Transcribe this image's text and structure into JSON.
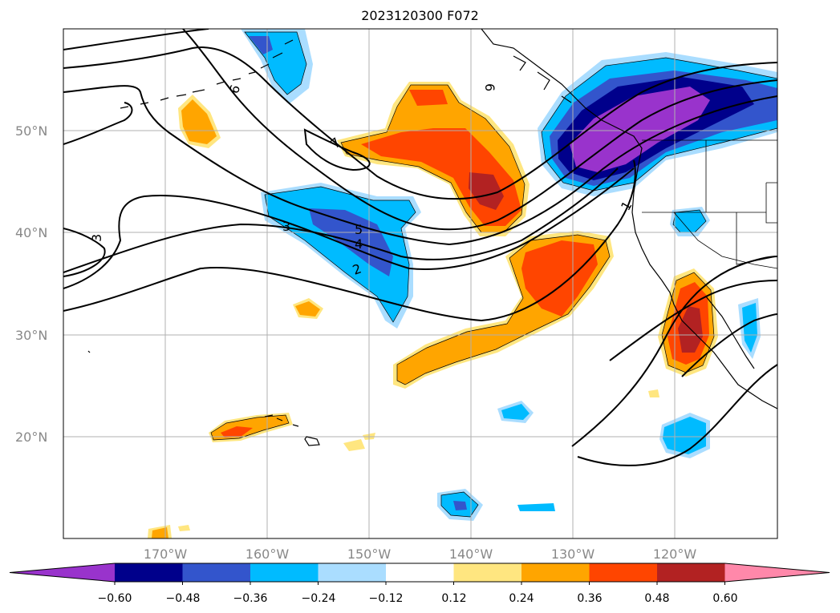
{
  "title": "2023120300 F072",
  "latitude_labels": [
    "50°N",
    "40°N",
    "30°N",
    "20°N"
  ],
  "longitude_labels": [
    "170°W",
    "160°W",
    "150°W",
    "140°W",
    "130°W",
    "120°W"
  ],
  "colorbar": {
    "tick_labels": [
      "−0.60",
      "−0.48",
      "−0.36",
      "−0.24",
      "−0.12",
      "0.12",
      "0.24",
      "0.36",
      "0.48",
      "0.60"
    ],
    "colors": [
      "#9933cc",
      "#00008b",
      "#3355cc",
      "#00bbff",
      "#aaddff",
      "#ffffff",
      "#ffe680",
      "#ffa500",
      "#ff4500",
      "#b22222",
      "#ff88aa"
    ]
  },
  "contour_labels": [
    "6",
    "6",
    "7",
    "5",
    "4",
    "3",
    "3",
    "2",
    "1"
  ],
  "colors": {
    "contour": "#000000",
    "grid": "#b0b0b0",
    "coast": "#000000"
  }
}
